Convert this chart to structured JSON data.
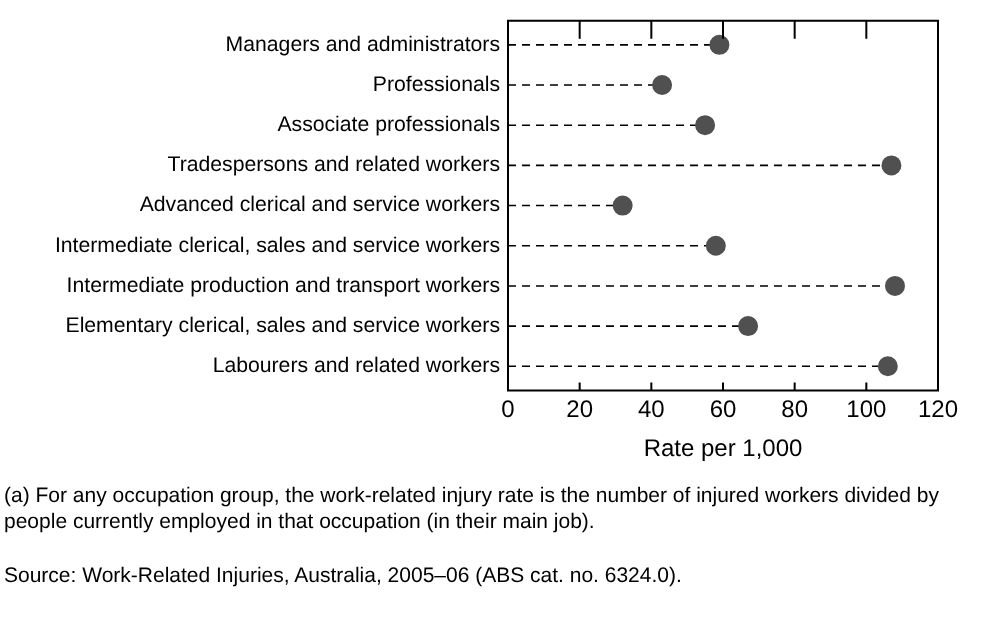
{
  "chart_data": {
    "type": "lollipop",
    "orientation": "horizontal",
    "categories": [
      "Managers and administrators",
      "Professionals",
      "Associate professionals",
      "Tradespersons and related workers",
      "Advanced clerical and service workers",
      "Intermediate clerical, sales and service workers",
      "Intermediate production and transport workers",
      "Elementary clerical, sales and service workers",
      "Labourers and related workers"
    ],
    "values": [
      59,
      43,
      55,
      107,
      32,
      58,
      108,
      67,
      106
    ],
    "color": "#505050",
    "marker": "circle",
    "line_style": "dashed",
    "xlim": [
      0,
      120
    ],
    "xticks": [
      0,
      20,
      40,
      60,
      80,
      100,
      120
    ],
    "xlabel": "Rate per 1,000",
    "annotations": [
      "(a) For any occupation group, the work-related injury rate is the number of injured workers divided by people currently employed in that occupation (in their main job).",
      "Source: Work-Related Injuries, Australia, 2005–06 (ABS cat. no. 6324.0)."
    ]
  }
}
